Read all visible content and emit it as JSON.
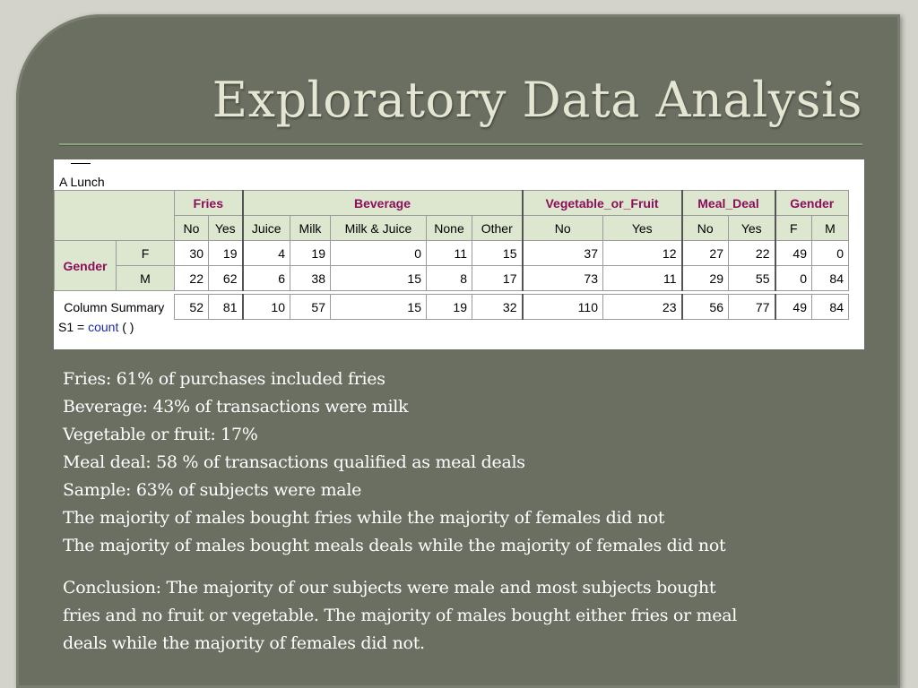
{
  "slide": {
    "title": "Exploratory Data Analysis"
  },
  "table": {
    "caption": "A Lunch",
    "formula_prefix": "S1 = ",
    "formula_fn": "count",
    "formula_suffix": " (   )",
    "groups": [
      "Fries",
      "Beverage",
      "Vegetable_or_Fruit",
      "Meal_Deal",
      "Gender"
    ],
    "columns": [
      "No",
      "Yes",
      "Juice",
      "Milk",
      "Milk & Juice",
      "None",
      "Other",
      "No",
      "Yes",
      "No",
      "Yes",
      "F",
      "M"
    ],
    "row_group": "Gender",
    "rows": [
      {
        "label": "F",
        "values": [
          "30",
          "19",
          "4",
          "19",
          "0",
          "11",
          "15",
          "37",
          "12",
          "27",
          "22",
          "49",
          "0"
        ]
      },
      {
        "label": "M",
        "values": [
          "22",
          "62",
          "6",
          "38",
          "15",
          "8",
          "17",
          "73",
          "11",
          "29",
          "55",
          "0",
          "84"
        ]
      }
    ],
    "summary": {
      "label": "Column Summary",
      "values": [
        "52",
        "81",
        "10",
        "57",
        "15",
        "19",
        "32",
        "110",
        "23",
        "56",
        "77",
        "49",
        "84"
      ]
    }
  },
  "findings": [
    "Fries: 61% of purchases included fries",
    "Beverage: 43% of transactions were milk",
    "Vegetable or fruit: 17%",
    "Meal deal: 58 % of transactions qualified as meal deals",
    "Sample: 63% of subjects were male",
    "The majority of males bought fries while the majority of females did not",
    "The majority of males bought meals deals while the majority of females did not"
  ],
  "conclusion": "Conclusion: The majority of our subjects were male and most subjects bought fries and no fruit or vegetable. The majority of males bought either fries or meal deals while the majority of females did not.",
  "colors": {
    "slide_background": "#6b6f62",
    "title_text": "#e4e6d2",
    "header_fill": "#dde6cf",
    "header_text": "#8b0f5a"
  }
}
